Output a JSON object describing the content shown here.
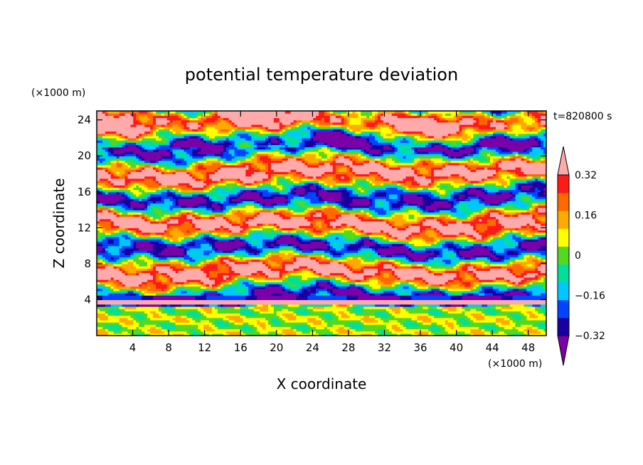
{
  "chart_data": {
    "type": "heatmap",
    "title": "potential temperature deviation",
    "xlabel": "X coordinate",
    "ylabel": "Z coordinate",
    "x_unit": "(×1000 m)",
    "y_unit": "(×1000 m)",
    "time_label": "t=820800 s",
    "xlim": [
      0,
      50
    ],
    "ylim": [
      0,
      25
    ],
    "x_ticks": [
      4,
      8,
      12,
      16,
      20,
      24,
      28,
      32,
      36,
      40,
      44,
      48
    ],
    "y_ticks": [
      4,
      8,
      12,
      16,
      20,
      24
    ],
    "colorbar": {
      "levels": [
        -0.4,
        -0.32,
        -0.24,
        -0.16,
        -0.08,
        0,
        0.08,
        0.16,
        0.24,
        0.32,
        0.4
      ],
      "labels": [
        "0.32",
        "0.16",
        "0",
        "−0.16",
        "−0.32"
      ],
      "label_values": [
        0.32,
        0.16,
        0,
        -0.16,
        -0.32
      ],
      "colors": [
        "#7a00a8",
        "#1a00a0",
        "#0044ff",
        "#00c8ff",
        "#00e09a",
        "#55d820",
        "#ffff00",
        "#ffaa00",
        "#ff6a00",
        "#ff1a1a",
        "#ffaaaa"
      ]
    }
  }
}
